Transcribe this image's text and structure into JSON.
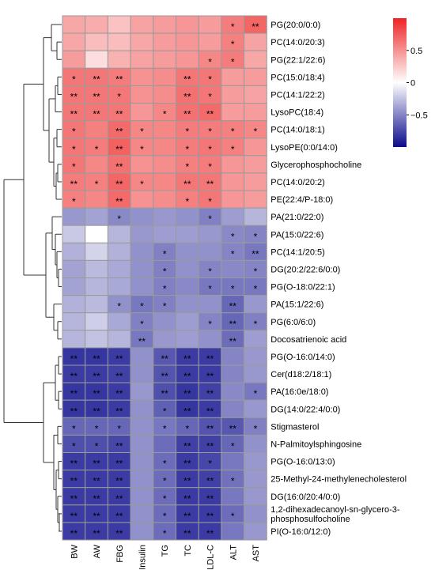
{
  "chart_data": {
    "type": "heatmap",
    "columns": [
      "BW",
      "AW",
      "FBG",
      "Insulin",
      "TG",
      "TC",
      "LDL-C",
      "ALT",
      "AST"
    ],
    "rows": [
      "PG(20:0/0:0)",
      "PC(14:0/20:3)",
      "PG(22:1/22:6)",
      "PC(15:0/18:4)",
      "PC(14:1/22:2)",
      "LysoPC(18:4)",
      "PC(14:0/18:1)",
      "LysoPE(0:0/14:0)",
      "Glycerophosphocholine",
      "PC(14:0/20:2)",
      "PE(22:4/P-18:0)",
      "PA(21:0/22:0)",
      "PA(15:0/22:6)",
      "PC(14:1/20:5)",
      "DG(20:2/22:6/0:0)",
      "PG(O-18:0/22:1)",
      "PA(15:1/22:6)",
      "PG(6:0/6:0)",
      "Docosatrienoic acid",
      "PG(O-16:0/14:0)",
      "Cer(d18:2/18:1)",
      "PA(16:0e/18:0)",
      "DG(14:0/22:4/0:0)",
      "Stigmasterol",
      "N-Palmitoylsphingosine",
      "PG(O-16:0/13:0)",
      "25-Methyl-24-methylenecholesterol",
      "DG(16:0/20:4/0:0)",
      "1,2-dihexadecanoyl-sn-glycero-3-phosphosulfocholine",
      "PI(O-16:0/12:0)"
    ],
    "values": [
      [
        0.4,
        0.38,
        0.28,
        0.42,
        0.45,
        0.48,
        0.45,
        0.6,
        0.7
      ],
      [
        0.4,
        0.3,
        0.3,
        0.4,
        0.45,
        0.48,
        0.45,
        0.58,
        0.42
      ],
      [
        0.45,
        0.15,
        0.35,
        0.42,
        0.45,
        0.48,
        0.55,
        0.6,
        0.4
      ],
      [
        0.62,
        0.62,
        0.6,
        0.5,
        0.52,
        0.62,
        0.62,
        0.45,
        0.45
      ],
      [
        0.62,
        0.62,
        0.62,
        0.5,
        0.52,
        0.65,
        0.62,
        0.45,
        0.42
      ],
      [
        0.62,
        0.62,
        0.62,
        0.48,
        0.55,
        0.65,
        0.68,
        0.45,
        0.45
      ],
      [
        0.62,
        0.58,
        0.68,
        0.55,
        0.55,
        0.6,
        0.6,
        0.58,
        0.55
      ],
      [
        0.62,
        0.6,
        0.72,
        0.55,
        0.55,
        0.6,
        0.62,
        0.58,
        0.48
      ],
      [
        0.62,
        0.55,
        0.65,
        0.5,
        0.52,
        0.58,
        0.6,
        0.48,
        0.45
      ],
      [
        0.6,
        0.58,
        0.7,
        0.55,
        0.55,
        0.62,
        0.62,
        0.48,
        0.45
      ],
      [
        0.58,
        0.55,
        0.68,
        0.5,
        0.52,
        0.58,
        0.62,
        0.48,
        0.45
      ],
      [
        -0.42,
        -0.38,
        -0.48,
        -0.45,
        -0.42,
        -0.45,
        -0.52,
        -0.4,
        -0.3
      ],
      [
        -0.22,
        0.0,
        -0.3,
        -0.42,
        -0.4,
        -0.4,
        -0.42,
        -0.48,
        -0.5
      ],
      [
        -0.32,
        -0.18,
        -0.32,
        -0.45,
        -0.52,
        -0.45,
        -0.45,
        -0.5,
        -0.55
      ],
      [
        -0.38,
        -0.28,
        -0.35,
        -0.45,
        -0.52,
        -0.45,
        -0.5,
        -0.48,
        -0.5
      ],
      [
        -0.38,
        -0.3,
        -0.35,
        -0.45,
        -0.52,
        -0.48,
        -0.55,
        -0.55,
        -0.55
      ],
      [
        -0.32,
        -0.28,
        -0.45,
        -0.55,
        -0.52,
        -0.45,
        -0.45,
        -0.62,
        -0.42
      ],
      [
        -0.3,
        -0.2,
        -0.35,
        -0.52,
        -0.45,
        -0.4,
        -0.5,
        -0.62,
        -0.52
      ],
      [
        -0.3,
        -0.25,
        -0.3,
        -0.55,
        -0.42,
        -0.4,
        -0.45,
        -0.6,
        -0.4
      ],
      [
        -0.82,
        -0.82,
        -0.8,
        -0.45,
        -0.68,
        -0.8,
        -0.8,
        -0.5,
        -0.42
      ],
      [
        -0.8,
        -0.8,
        -0.78,
        -0.45,
        -0.7,
        -0.8,
        -0.8,
        -0.5,
        -0.42
      ],
      [
        -0.82,
        -0.82,
        -0.8,
        -0.42,
        -0.72,
        -0.82,
        -0.78,
        -0.48,
        -0.55
      ],
      [
        -0.82,
        -0.82,
        -0.8,
        -0.45,
        -0.65,
        -0.82,
        -0.8,
        -0.5,
        -0.42
      ],
      [
        -0.62,
        -0.62,
        -0.62,
        -0.45,
        -0.55,
        -0.62,
        -0.7,
        -0.68,
        -0.52
      ],
      [
        -0.72,
        -0.72,
        -0.75,
        -0.45,
        -0.6,
        -0.78,
        -0.78,
        -0.62,
        -0.45
      ],
      [
        -0.8,
        -0.8,
        -0.8,
        -0.45,
        -0.6,
        -0.8,
        -0.75,
        -0.55,
        -0.42
      ],
      [
        -0.8,
        -0.8,
        -0.8,
        -0.45,
        -0.6,
        -0.8,
        -0.78,
        -0.58,
        -0.42
      ],
      [
        -0.8,
        -0.8,
        -0.8,
        -0.45,
        -0.6,
        -0.8,
        -0.8,
        -0.55,
        -0.42
      ],
      [
        -0.8,
        -0.8,
        -0.8,
        -0.45,
        -0.6,
        -0.8,
        -0.8,
        -0.6,
        -0.45
      ],
      [
        -0.8,
        -0.8,
        -0.8,
        -0.45,
        -0.6,
        -0.8,
        -0.8,
        -0.55,
        -0.42
      ]
    ],
    "significance": [
      [
        "",
        "",
        "",
        "",
        "",
        "",
        "",
        "*",
        "**"
      ],
      [
        "",
        "",
        "",
        "",
        "",
        "",
        "",
        "*",
        ""
      ],
      [
        "",
        "",
        "",
        "",
        "",
        "",
        "*",
        "*",
        ""
      ],
      [
        "*",
        "**",
        "**",
        "",
        "",
        "**",
        "*",
        "",
        ""
      ],
      [
        "**",
        "**",
        "*",
        "",
        "",
        "**",
        "*",
        "",
        ""
      ],
      [
        "**",
        "**",
        "**",
        "",
        "*",
        "**",
        "**",
        "",
        ""
      ],
      [
        "*",
        "",
        "**",
        "*",
        "",
        "*",
        "*",
        "*",
        "*"
      ],
      [
        "*",
        "*",
        "**",
        "*",
        "",
        "*",
        "*",
        "*",
        ""
      ],
      [
        "*",
        "",
        "**",
        "",
        "",
        "*",
        "*",
        "",
        ""
      ],
      [
        "**",
        "*",
        "**",
        "*",
        "",
        "**",
        "**",
        "",
        ""
      ],
      [
        "*",
        "",
        "**",
        "",
        "",
        "*",
        "*",
        "",
        ""
      ],
      [
        "",
        "",
        "*",
        "",
        "",
        "",
        "*",
        "",
        ""
      ],
      [
        "",
        "",
        "",
        "",
        "",
        "",
        "",
        "*",
        "*"
      ],
      [
        "",
        "",
        "",
        "",
        "*",
        "",
        "",
        "*",
        "**"
      ],
      [
        "",
        "",
        "",
        "",
        "*",
        "",
        "*",
        "",
        "*"
      ],
      [
        "",
        "",
        "",
        "",
        "*",
        "",
        "*",
        "*",
        "*"
      ],
      [
        "",
        "",
        "*",
        "*",
        "*",
        "",
        "",
        "**",
        ""
      ],
      [
        "",
        "",
        "",
        "*",
        "",
        "",
        "*",
        "**",
        "*"
      ],
      [
        "",
        "",
        "",
        "**",
        "",
        "",
        "",
        "**",
        ""
      ],
      [
        "**",
        "**",
        "**",
        "",
        "**",
        "**",
        "**",
        "",
        ""
      ],
      [
        "**",
        "**",
        "**",
        "",
        "**",
        "**",
        "**",
        "",
        ""
      ],
      [
        "**",
        "**",
        "**",
        "",
        "**",
        "**",
        "**",
        "",
        "*"
      ],
      [
        "**",
        "**",
        "**",
        "",
        "*",
        "**",
        "**",
        "",
        ""
      ],
      [
        "*",
        "*",
        "*",
        "",
        "*",
        "*",
        "**",
        "**",
        "*"
      ],
      [
        "*",
        "*",
        "**",
        "",
        "",
        "**",
        "**",
        "*",
        ""
      ],
      [
        "**",
        "**",
        "**",
        "",
        "*",
        "**",
        "*",
        "",
        ""
      ],
      [
        "**",
        "**",
        "**",
        "",
        "*",
        "**",
        "**",
        "*",
        ""
      ],
      [
        "**",
        "**",
        "**",
        "",
        "*",
        "**",
        "**",
        "",
        ""
      ],
      [
        "**",
        "**",
        "**",
        "",
        "*",
        "**",
        "**",
        "*",
        ""
      ],
      [
        "**",
        "**",
        "**",
        "",
        "*",
        "**",
        "**",
        "",
        ""
      ]
    ],
    "colorbar": {
      "min": -1,
      "max": 1,
      "ticks": [
        0.5,
        0,
        -0.5
      ],
      "tick_labels": [
        "0.5",
        "0",
        "−0.5"
      ],
      "colors": {
        "low": "#0a0a8c",
        "mid": "#ffffff",
        "high": "#ee2424"
      },
      "placement": "top-right"
    },
    "dendrogram": "left",
    "grid": true
  }
}
